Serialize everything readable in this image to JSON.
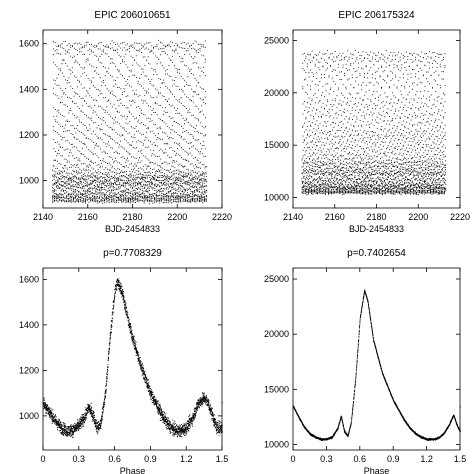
{
  "chart_data": [
    {
      "type": "scatter",
      "title": "EPIC 206010651",
      "xlabel": "BJD-2454833",
      "ylabel": "",
      "xlim": [
        2140,
        2220
      ],
      "ylim": [
        880,
        1660
      ],
      "x_ticks": [
        2140,
        2160,
        2180,
        2200,
        2220
      ],
      "y_ticks": [
        1000,
        1200,
        1400,
        1600
      ],
      "data_x_range": [
        2144,
        2213
      ],
      "data_y_range": [
        910,
        1610
      ],
      "series": [
        {
          "kind": "time-series",
          "period": 0.7708329,
          "phase_curve_ref": 2
        }
      ],
      "grid": false,
      "legend": "none"
    },
    {
      "type": "scatter",
      "title": "EPIC 206175324",
      "xlabel": "BJD-2454833",
      "ylabel": "",
      "xlim": [
        2140,
        2220
      ],
      "ylim": [
        9000,
        26000
      ],
      "x_ticks": [
        2140,
        2160,
        2180,
        2200,
        2220
      ],
      "y_ticks": [
        10000,
        15000,
        20000,
        25000
      ],
      "data_x_range": [
        2144,
        2213
      ],
      "data_y_range": [
        10500,
        24000
      ],
      "series": [
        {
          "kind": "time-series",
          "period": 0.7402654,
          "phase_curve_ref": 3
        }
      ],
      "grid": false,
      "legend": "none"
    },
    {
      "type": "scatter",
      "title": "p=0.7708329",
      "xlabel": "Phase",
      "ylabel": "",
      "xlim": [
        0,
        1.5
      ],
      "ylim": [
        850,
        1650
      ],
      "x_ticks": [
        "0",
        "0.3",
        "0.6",
        "0.9",
        "1.2",
        "1.5"
      ],
      "y_ticks": [
        1000,
        1200,
        1400,
        1600
      ],
      "series": [
        {
          "kind": "phase-curve",
          "scatter": 25,
          "points": [
            [
              0.0,
              1060
            ],
            [
              0.05,
              1020
            ],
            [
              0.1,
              980
            ],
            [
              0.15,
              950
            ],
            [
              0.2,
              935
            ],
            [
              0.25,
              940
            ],
            [
              0.3,
              960
            ],
            [
              0.35,
              1000
            ],
            [
              0.38,
              1040
            ],
            [
              0.42,
              1000
            ],
            [
              0.45,
              950
            ],
            [
              0.48,
              960
            ],
            [
              0.52,
              1100
            ],
            [
              0.56,
              1350
            ],
            [
              0.6,
              1550
            ],
            [
              0.62,
              1590
            ],
            [
              0.66,
              1550
            ],
            [
              0.72,
              1400
            ],
            [
              0.8,
              1250
            ],
            [
              0.9,
              1100
            ],
            [
              1.0,
              1000
            ],
            [
              1.05,
              960
            ],
            [
              1.1,
              940
            ],
            [
              1.15,
              935
            ],
            [
              1.2,
              950
            ],
            [
              1.25,
              990
            ],
            [
              1.3,
              1060
            ],
            [
              1.35,
              1080
            ],
            [
              1.38,
              1060
            ],
            [
              1.42,
              1000
            ],
            [
              1.45,
              950
            ],
            [
              1.5,
              950
            ]
          ]
        }
      ],
      "grid": false,
      "legend": "none"
    },
    {
      "type": "scatter",
      "title": "p=0.7402654",
      "xlabel": "Phase",
      "ylabel": "",
      "xlim": [
        0,
        1.5
      ],
      "ylim": [
        9500,
        26000
      ],
      "x_ticks": [
        "0",
        "0.3",
        "0.6",
        "0.9",
        "1.2",
        "1.5"
      ],
      "y_ticks": [
        10000,
        15000,
        20000,
        25000
      ],
      "series": [
        {
          "kind": "phase-curve",
          "scatter": 80,
          "points": [
            [
              0.0,
              13500
            ],
            [
              0.05,
              12500
            ],
            [
              0.1,
              11600
            ],
            [
              0.15,
              11000
            ],
            [
              0.2,
              10700
            ],
            [
              0.25,
              10500
            ],
            [
              0.3,
              10500
            ],
            [
              0.35,
              10700
            ],
            [
              0.4,
              11500
            ],
            [
              0.43,
              12600
            ],
            [
              0.46,
              11200
            ],
            [
              0.49,
              10800
            ],
            [
              0.52,
              12000
            ],
            [
              0.56,
              16000
            ],
            [
              0.6,
              21500
            ],
            [
              0.64,
              24000
            ],
            [
              0.67,
              23000
            ],
            [
              0.72,
              19500
            ],
            [
              0.8,
              16500
            ],
            [
              0.9,
              14000
            ],
            [
              1.0,
              12200
            ],
            [
              1.05,
              11500
            ],
            [
              1.1,
              11000
            ],
            [
              1.15,
              10700
            ],
            [
              1.2,
              10500
            ],
            [
              1.25,
              10500
            ],
            [
              1.3,
              10600
            ],
            [
              1.35,
              11000
            ],
            [
              1.4,
              11800
            ],
            [
              1.44,
              12700
            ],
            [
              1.47,
              11800
            ],
            [
              1.5,
              11200
            ]
          ]
        }
      ],
      "grid": false,
      "legend": "none"
    }
  ]
}
